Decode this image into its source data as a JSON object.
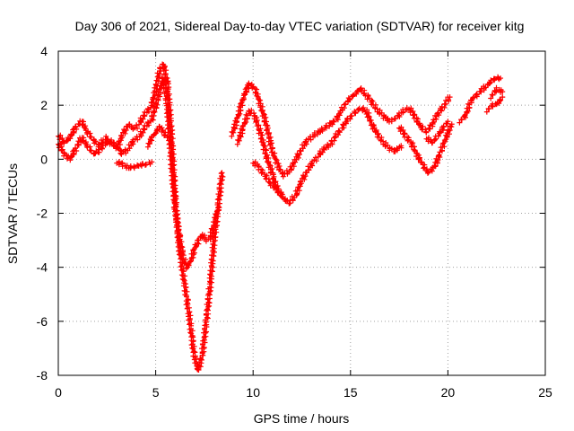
{
  "chart_data": {
    "type": "scatter",
    "title": "Day 306 of 2021, Sidereal Day-to-day VTEC variation (SDTVAR) for receiver kitg",
    "xlabel": "GPS time / hours",
    "ylabel": "SDTVAR / TECUs",
    "xlim": [
      0,
      25
    ],
    "ylim": [
      -8,
      4
    ],
    "xticks": [
      "0",
      "5",
      "10",
      "15",
      "20",
      "25"
    ],
    "yticks": [
      "-8",
      "-6",
      "-4",
      "-2",
      "0",
      "2",
      "4"
    ],
    "grid": true,
    "marker": "plus",
    "color": "#ff0000",
    "series": [
      {
        "x": [
          0.0,
          0.3,
          0.6,
          0.9,
          1.2,
          1.5,
          1.8,
          2.1,
          2.4,
          2.7,
          3.0,
          3.3,
          3.6,
          3.9,
          4.2,
          4.5,
          4.8,
          5.0,
          5.2,
          5.4,
          5.6,
          5.8,
          6.0,
          6.2,
          6.4,
          6.6,
          6.8,
          7.0,
          7.2,
          7.4,
          7.6,
          7.8,
          8.0,
          8.2,
          8.4
        ],
        "y": [
          0.9,
          0.6,
          0.8,
          1.2,
          1.4,
          1.0,
          0.7,
          0.5,
          0.8,
          0.6,
          0.4,
          0.9,
          1.3,
          1.1,
          1.4,
          1.7,
          2.0,
          2.6,
          3.3,
          3.5,
          2.8,
          1.0,
          -1.5,
          -3.2,
          -4.2,
          -5.2,
          -6.2,
          -7.4,
          -7.8,
          -7.2,
          -6.0,
          -4.6,
          -3.0,
          -1.8,
          -0.5
        ]
      },
      {
        "x": [
          0.0,
          0.3,
          0.6,
          0.9,
          1.2,
          1.5,
          1.8,
          2.1,
          2.4,
          2.7,
          3.0,
          3.3,
          3.6,
          3.9,
          4.2,
          4.5,
          4.8,
          5.0,
          5.2,
          5.4,
          5.6,
          5.8,
          6.0,
          6.2,
          6.4,
          6.6,
          6.8,
          7.0,
          7.2,
          7.4,
          7.6,
          7.8,
          8.0,
          8.2
        ],
        "y": [
          0.6,
          0.2,
          0.0,
          0.4,
          0.8,
          0.5,
          0.2,
          0.3,
          0.6,
          0.7,
          0.5,
          0.2,
          0.4,
          0.7,
          0.9,
          1.2,
          1.5,
          1.9,
          2.5,
          3.0,
          2.0,
          0.0,
          -1.8,
          -2.8,
          -3.6,
          -4.0,
          -3.8,
          -3.3,
          -3.0,
          -2.8,
          -3.0,
          -2.9,
          -2.4,
          -1.8
        ]
      },
      {
        "x": [
          3.0,
          3.3,
          3.6,
          3.9,
          4.2,
          4.5,
          4.8
        ],
        "y": [
          -0.1,
          -0.2,
          -0.3,
          -0.3,
          -0.2,
          -0.2,
          -0.1
        ]
      },
      {
        "x": [
          4.6,
          4.8,
          5.0,
          5.2,
          5.4,
          5.6
        ],
        "y": [
          0.5,
          0.8,
          1.0,
          1.2,
          1.0,
          0.8
        ]
      },
      {
        "x": [
          8.9,
          9.2,
          9.5,
          9.8,
          10.1,
          10.4,
          10.7,
          11.0,
          11.3,
          11.6,
          11.9,
          12.2,
          12.5,
          12.8,
          13.1,
          13.4,
          13.7,
          14.0,
          14.3,
          14.6,
          14.9,
          15.2,
          15.5,
          15.8,
          16.1,
          16.4,
          16.7,
          17.0,
          17.3,
          17.6,
          17.9
        ],
        "y": [
          0.9,
          1.5,
          2.3,
          2.8,
          2.6,
          2.0,
          1.2,
          0.3,
          -0.3,
          -0.6,
          -0.4,
          0.0,
          0.4,
          0.7,
          0.9,
          1.0,
          1.2,
          1.3,
          1.5,
          1.9,
          2.2,
          2.4,
          2.6,
          2.4,
          2.1,
          1.8,
          1.6,
          1.4,
          1.5,
          1.7,
          1.9
        ]
      },
      {
        "x": [
          9.2,
          9.5,
          9.8,
          10.1,
          10.4,
          10.7,
          11.0,
          11.3,
          11.6,
          11.9,
          12.2,
          12.5,
          12.8,
          13.1,
          13.4,
          13.7,
          14.0,
          14.3,
          14.6,
          14.9,
          15.2,
          15.5,
          15.8,
          16.1,
          16.4,
          16.7,
          17.0,
          17.3,
          17.6
        ],
        "y": [
          0.6,
          1.2,
          1.8,
          1.6,
          0.9,
          0.1,
          -0.6,
          -1.2,
          -1.5,
          -1.6,
          -1.3,
          -0.8,
          -0.4,
          -0.1,
          0.2,
          0.4,
          0.6,
          0.9,
          1.2,
          1.5,
          1.7,
          1.9,
          1.8,
          1.3,
          0.9,
          0.6,
          0.4,
          0.3,
          0.5
        ]
      },
      {
        "x": [
          10.0,
          10.3,
          10.6,
          10.9,
          11.2,
          11.5
        ],
        "y": [
          -0.1,
          -0.3,
          -0.6,
          -0.9,
          -1.1,
          -1.3
        ]
      },
      {
        "x": [
          17.5,
          17.8,
          18.1,
          18.4,
          18.7,
          19.0,
          19.3,
          19.6,
          19.9,
          20.2
        ],
        "y": [
          1.2,
          0.9,
          0.6,
          0.2,
          -0.2,
          -0.5,
          -0.3,
          0.2,
          0.8,
          1.3
        ]
      },
      {
        "x": [
          18.0,
          18.3,
          18.6,
          18.9,
          19.2,
          19.5,
          19.8,
          20.1
        ],
        "y": [
          1.9,
          1.6,
          1.2,
          1.0,
          1.3,
          1.7,
          2.0,
          2.3
        ]
      },
      {
        "x": [
          18.9,
          19.2,
          19.5,
          19.8,
          20.0
        ],
        "y": [
          0.8,
          0.6,
          0.9,
          1.2,
          1.4
        ]
      },
      {
        "x": [
          20.6,
          20.9,
          21.2,
          21.5,
          22.1,
          22.4,
          22.7
        ],
        "y": [
          1.4,
          1.6,
          2.2,
          2.4,
          2.8,
          3.0,
          3.0
        ]
      },
      {
        "x": [
          22.0,
          22.3,
          22.6,
          22.8
        ],
        "y": [
          1.8,
          2.0,
          2.1,
          2.3
        ]
      },
      {
        "x": [
          22.2,
          22.5,
          22.8
        ],
        "y": [
          2.3,
          2.6,
          2.5
        ]
      }
    ]
  }
}
